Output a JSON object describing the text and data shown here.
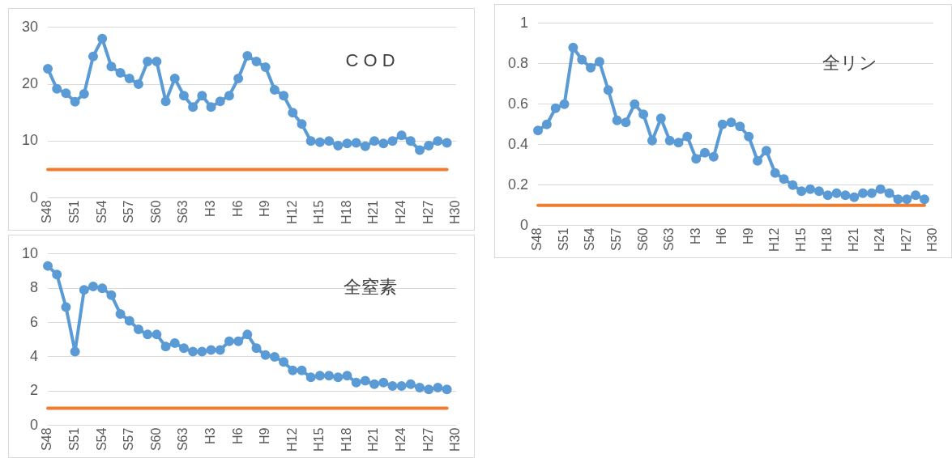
{
  "chart_data": [
    {
      "type": "line",
      "title": "C O D",
      "categories": [
        "S48",
        null,
        null,
        "S51",
        null,
        null,
        "S54",
        null,
        null,
        "S57",
        null,
        null,
        "S60",
        null,
        null,
        "S63",
        null,
        null,
        "H3",
        null,
        null,
        "H6",
        null,
        null,
        "H9",
        null,
        null,
        "H12",
        null,
        null,
        "H15",
        null,
        null,
        "H18",
        null,
        null,
        "H21",
        null,
        null,
        "H24",
        null,
        null,
        "H27",
        null,
        null,
        "H30"
      ],
      "series": [
        {
          "color": "#5b9bd5",
          "marker": "circle",
          "values": [
            22.7,
            19.2,
            18.4,
            16.9,
            18.3,
            24.9,
            28.0,
            23.1,
            22.0,
            21.0,
            20.0,
            24.0,
            24.0,
            17.0,
            21.0,
            18.0,
            16.0,
            18.0,
            16.0,
            17.0,
            18.0,
            21.0,
            25.0,
            24.0,
            23.0,
            19.0,
            18.0,
            15.0,
            13.0,
            10.0,
            9.8,
            10.0,
            9.2,
            9.6,
            9.7,
            9.1,
            10.0,
            9.6,
            10.0,
            11.0,
            10.0,
            8.4,
            9.2,
            10.0,
            9.7,
            null
          ]
        },
        {
          "color": "#ed7d31",
          "marker": "none",
          "values": [
            5,
            5,
            5,
            5,
            5,
            5,
            5,
            5,
            5,
            5,
            5,
            5,
            5,
            5,
            5,
            5,
            5,
            5,
            5,
            5,
            5,
            5,
            5,
            5,
            5,
            5,
            5,
            5,
            5,
            5,
            5,
            5,
            5,
            5,
            5,
            5,
            5,
            5,
            5,
            5,
            5,
            5,
            5,
            5,
            5,
            null
          ]
        }
      ],
      "ylim": [
        0,
        30
      ],
      "yticks": [
        0,
        10,
        20,
        30
      ],
      "grid": "y",
      "legend": false
    },
    {
      "type": "line",
      "title": "全リン",
      "categories": [
        "S48",
        null,
        null,
        "S51",
        null,
        null,
        "S54",
        null,
        null,
        "S57",
        null,
        null,
        "S60",
        null,
        null,
        "S63",
        null,
        null,
        "H3",
        null,
        null,
        "H6",
        null,
        null,
        "H9",
        null,
        null,
        "H12",
        null,
        null,
        "H15",
        null,
        null,
        "H18",
        null,
        null,
        "H21",
        null,
        null,
        "H24",
        null,
        null,
        "H27",
        null,
        null,
        "H30"
      ],
      "series": [
        {
          "color": "#5b9bd5",
          "marker": "circle",
          "values": [
            0.47,
            0.5,
            0.58,
            0.6,
            0.88,
            0.82,
            0.78,
            0.81,
            0.67,
            0.52,
            0.51,
            0.6,
            0.55,
            0.42,
            0.53,
            0.42,
            0.41,
            0.44,
            0.33,
            0.36,
            0.34,
            0.5,
            0.51,
            0.49,
            0.44,
            0.32,
            0.37,
            0.26,
            0.23,
            0.2,
            0.17,
            0.18,
            0.17,
            0.15,
            0.16,
            0.15,
            0.14,
            0.16,
            0.16,
            0.18,
            0.16,
            0.13,
            0.13,
            0.15,
            0.13,
            null
          ]
        },
        {
          "color": "#ed7d31",
          "marker": "none",
          "values": [
            0.1,
            0.1,
            0.1,
            0.1,
            0.1,
            0.1,
            0.1,
            0.1,
            0.1,
            0.1,
            0.1,
            0.1,
            0.1,
            0.1,
            0.1,
            0.1,
            0.1,
            0.1,
            0.1,
            0.1,
            0.1,
            0.1,
            0.1,
            0.1,
            0.1,
            0.1,
            0.1,
            0.1,
            0.1,
            0.1,
            0.1,
            0.1,
            0.1,
            0.1,
            0.1,
            0.1,
            0.1,
            0.1,
            0.1,
            0.1,
            0.1,
            0.1,
            0.1,
            0.1,
            0.1,
            null
          ]
        }
      ],
      "ylim": [
        0,
        1
      ],
      "yticks": [
        0,
        0.2,
        0.4,
        0.6,
        0.8,
        1
      ],
      "grid": "y",
      "legend": false
    },
    {
      "type": "line",
      "title": "全窒素",
      "categories": [
        "S48",
        null,
        null,
        "S51",
        null,
        null,
        "S54",
        null,
        null,
        "S57",
        null,
        null,
        "S60",
        null,
        null,
        "S63",
        null,
        null,
        "H3",
        null,
        null,
        "H6",
        null,
        null,
        "H9",
        null,
        null,
        "H12",
        null,
        null,
        "H15",
        null,
        null,
        "H18",
        null,
        null,
        "H21",
        null,
        null,
        "H24",
        null,
        null,
        "H27",
        null,
        null,
        "H30"
      ],
      "series": [
        {
          "color": "#5b9bd5",
          "marker": "circle",
          "values": [
            9.3,
            8.8,
            6.9,
            4.3,
            7.9,
            8.1,
            8.0,
            7.6,
            6.5,
            6.1,
            5.6,
            5.3,
            5.3,
            4.6,
            4.8,
            4.5,
            4.3,
            4.3,
            4.4,
            4.4,
            4.9,
            4.9,
            5.3,
            4.5,
            4.1,
            4.0,
            3.7,
            3.2,
            3.2,
            2.8,
            2.9,
            2.9,
            2.8,
            2.9,
            2.5,
            2.6,
            2.4,
            2.5,
            2.3,
            2.3,
            2.4,
            2.2,
            2.1,
            2.2,
            2.1,
            null
          ]
        },
        {
          "color": "#ed7d31",
          "marker": "none",
          "values": [
            1,
            1,
            1,
            1,
            1,
            1,
            1,
            1,
            1,
            1,
            1,
            1,
            1,
            1,
            1,
            1,
            1,
            1,
            1,
            1,
            1,
            1,
            1,
            1,
            1,
            1,
            1,
            1,
            1,
            1,
            1,
            1,
            1,
            1,
            1,
            1,
            1,
            1,
            1,
            1,
            1,
            1,
            1,
            1,
            1,
            null
          ]
        }
      ],
      "ylim": [
        0,
        10
      ],
      "yticks": [
        0,
        2,
        4,
        6,
        8,
        10
      ],
      "grid": "y",
      "legend": false
    }
  ]
}
